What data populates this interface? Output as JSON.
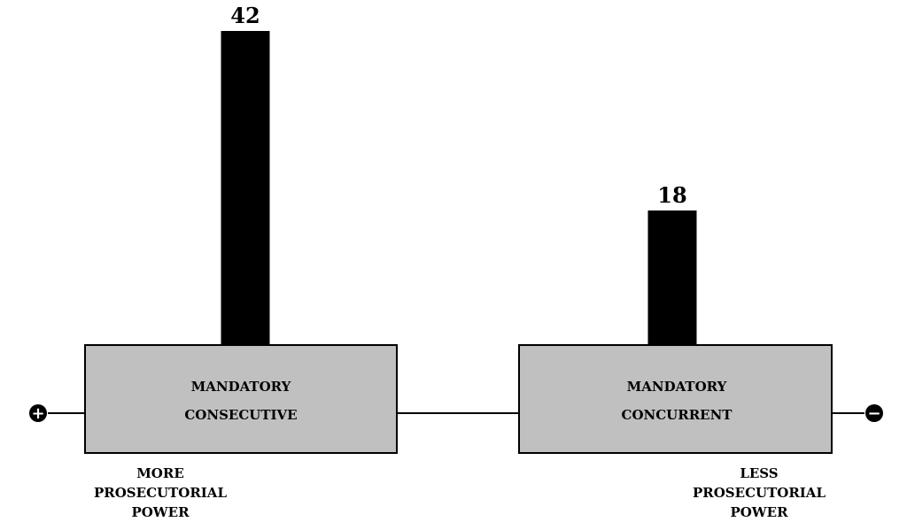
{
  "chart_data": {
    "type": "bar",
    "title": "",
    "xlabel": "",
    "ylabel": "",
    "categories": [
      "MANDATORY CONSECUTIVE",
      "MANDATORY CONCURRENT"
    ],
    "values": [
      42,
      18
    ],
    "ylim": [
      0,
      42
    ],
    "grid": false,
    "legend": "none",
    "boxes": [
      {
        "line1": "MANDATORY",
        "line2": "CONSECUTIVE"
      },
      {
        "line1": "MANDATORY",
        "line2": "CONCURRENT"
      }
    ],
    "ends": {
      "left": {
        "symbol": "+",
        "lines": [
          "MORE",
          "PROSECUTORIAL",
          "POWER"
        ]
      },
      "right": {
        "symbol": "−",
        "lines": [
          "LESS",
          "PROSECUTORIAL",
          "POWER"
        ]
      }
    },
    "colors": {
      "bar": "#000000",
      "box_fill": "#c0c0c0",
      "box_stroke": "#000000",
      "line": "#000000"
    }
  }
}
